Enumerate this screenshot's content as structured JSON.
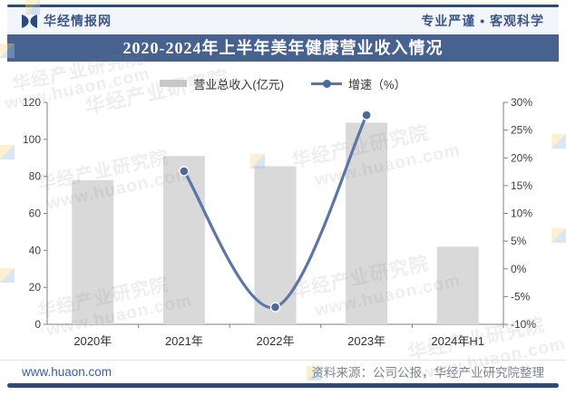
{
  "header": {
    "brand": "华经情报网",
    "slogan": "专业严谨 • 客观科学"
  },
  "title": "2020-2024年上半年美年健康营业收入情况",
  "legend": [
    {
      "label": "营业总收入(亿元)",
      "type": "bar"
    },
    {
      "label": "增速（%）",
      "type": "line"
    }
  ],
  "chart_data": {
    "type": "bar+line combo",
    "categories": [
      "2020年",
      "2021年",
      "2022年",
      "2023年",
      "2024年H1"
    ],
    "series": [
      {
        "name": "营业总收入(亿元)",
        "type": "bar",
        "axis": "left",
        "values": [
          78,
          91,
          85.5,
          109,
          42
        ],
        "color": "#d9d9d9"
      },
      {
        "name": "增速（%）",
        "type": "line",
        "axis": "right",
        "values": [
          null,
          17.6,
          -6.9,
          27.7,
          null
        ],
        "color": "#5b75a6",
        "marker_color": "#4d689b"
      }
    ],
    "left_axis": {
      "min": 0,
      "max": 120,
      "step": 20,
      "ticks": [
        "0",
        "20",
        "40",
        "60",
        "80",
        "100",
        "120"
      ]
    },
    "right_axis": {
      "min": -10,
      "max": 30,
      "step": 5,
      "ticks": [
        "-10%",
        "-5%",
        "0%",
        "5%",
        "10%",
        "15%",
        "20%",
        "25%",
        "30%"
      ]
    },
    "grid": false,
    "legend_position": "top"
  },
  "footer": {
    "site": "www.huaon.com",
    "source": "资料来源：公司公报，华经产业研究院整理"
  },
  "watermark": {
    "text1": "华经产业研究院",
    "text2": "www.huaon.com"
  },
  "colors": {
    "banner": "#48628f",
    "dark_bar": "#2c4a7c",
    "bar": "#d9d9d9",
    "legend_bar": "#c8c8c8",
    "line": "#5b75a6",
    "marker": "#4d689b",
    "header_bg": "#f2f5f9",
    "axis": "#808080"
  }
}
